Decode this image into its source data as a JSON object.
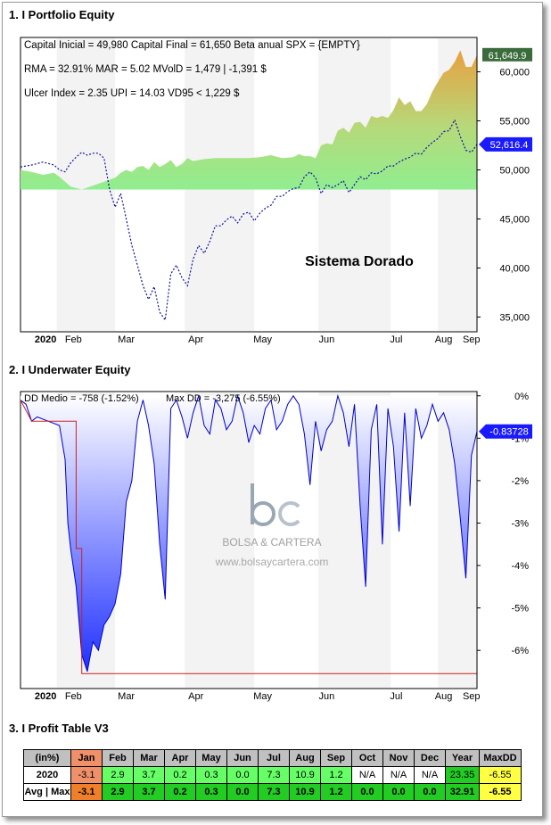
{
  "sections": {
    "equity_title": "1. I Portfolio Equity",
    "underwater_title": "2. I Underwater Equity",
    "profit_title": "3. I Profit Table V3"
  },
  "chart_data": [
    {
      "type": "area",
      "name": "portfolio-equity",
      "annotations": [
        "Capital Inicial = 49,980  Capital Final = 61,650   Beta anual SPX = {EMPTY}",
        "RMA = 32.91%   MAR = 5.02   MVolD = 1,479 | -1,391 $",
        "Ulcer Index = 2.35   UPI = 14.03   VD95 < 1,229 $"
      ],
      "watermark": "Sistema Dorado",
      "x_ticks": [
        "2020",
        "Feb",
        "Mar",
        "Apr",
        "May",
        "Jun",
        "Jul",
        "Aug",
        "Sep"
      ],
      "y_ticks": [
        "35,000",
        "40,000",
        "45,000",
        "50,000",
        "55,000",
        "60,000"
      ],
      "ylim": [
        33500,
        63500
      ],
      "baseline": 48000,
      "last_equity_label": "61,649.9",
      "last_benchmark_label": "52,616.4",
      "colors": {
        "equity_low": "#90ee90",
        "equity_high": "#e8a040",
        "benchmark": "#1010a0",
        "equity_label": "#3a6b3a",
        "benchmark_label": "#1a1aff"
      },
      "equity": [
        [
          0,
          50000
        ],
        [
          4,
          49800
        ],
        [
          8,
          49500
        ],
        [
          12,
          49700
        ],
        [
          14,
          49300
        ],
        [
          18,
          48300
        ],
        [
          22,
          48000
        ],
        [
          26,
          48400
        ],
        [
          30,
          48800
        ],
        [
          34,
          49200
        ],
        [
          36,
          49700
        ],
        [
          38,
          50000
        ],
        [
          40,
          49800
        ],
        [
          42,
          50300
        ],
        [
          44,
          50400
        ],
        [
          46,
          50000
        ],
        [
          48,
          50800
        ],
        [
          50,
          50300
        ],
        [
          52,
          50600
        ],
        [
          54,
          51000
        ],
        [
          56,
          50300
        ],
        [
          58,
          50600
        ],
        [
          60,
          51200
        ],
        [
          62,
          50900
        ],
        [
          66,
          51100
        ],
        [
          70,
          51200
        ],
        [
          74,
          51200
        ],
        [
          78,
          51200
        ],
        [
          82,
          51200
        ],
        [
          86,
          51300
        ],
        [
          90,
          51500
        ],
        [
          94,
          51200
        ],
        [
          98,
          51300
        ],
        [
          100,
          51600
        ],
        [
          102,
          51400
        ],
        [
          104,
          51400
        ],
        [
          106,
          51200
        ],
        [
          108,
          52500
        ],
        [
          110,
          52700
        ],
        [
          112,
          52600
        ],
        [
          114,
          54000
        ],
        [
          116,
          54300
        ],
        [
          118,
          53800
        ],
        [
          120,
          54800
        ],
        [
          122,
          54900
        ],
        [
          124,
          54300
        ],
        [
          126,
          55500
        ],
        [
          128,
          55300
        ],
        [
          130,
          55500
        ],
        [
          132,
          55300
        ],
        [
          134,
          56100
        ],
        [
          136,
          57400
        ],
        [
          138,
          56600
        ],
        [
          140,
          57000
        ],
        [
          142,
          56000
        ],
        [
          144,
          56000
        ],
        [
          146,
          56700
        ],
        [
          148,
          58000
        ],
        [
          150,
          59000
        ],
        [
          152,
          59900
        ],
        [
          154,
          60200
        ],
        [
          156,
          61000
        ],
        [
          158,
          62200
        ],
        [
          160,
          60500
        ],
        [
          162,
          60500
        ],
        [
          164,
          61700
        ]
      ],
      "benchmark": [
        [
          0,
          50300
        ],
        [
          4,
          50500
        ],
        [
          8,
          50800
        ],
        [
          12,
          50500
        ],
        [
          14,
          50000
        ],
        [
          16,
          49800
        ],
        [
          18,
          50700
        ],
        [
          20,
          51300
        ],
        [
          22,
          51800
        ],
        [
          24,
          51500
        ],
        [
          26,
          51700
        ],
        [
          28,
          51700
        ],
        [
          30,
          51200
        ],
        [
          32,
          48000
        ],
        [
          34,
          46200
        ],
        [
          36,
          47600
        ],
        [
          38,
          45000
        ],
        [
          40,
          42300
        ],
        [
          42,
          40300
        ],
        [
          44,
          38200
        ],
        [
          46,
          36800
        ],
        [
          48,
          38100
        ],
        [
          50,
          35500
        ],
        [
          52,
          34700
        ],
        [
          54,
          39400
        ],
        [
          56,
          40300
        ],
        [
          58,
          39000
        ],
        [
          60,
          38200
        ],
        [
          62,
          40900
        ],
        [
          64,
          42300
        ],
        [
          66,
          41500
        ],
        [
          68,
          42700
        ],
        [
          70,
          44300
        ],
        [
          72,
          44300
        ],
        [
          74,
          44900
        ],
        [
          76,
          45300
        ],
        [
          78,
          44600
        ],
        [
          80,
          45500
        ],
        [
          82,
          45700
        ],
        [
          84,
          44800
        ],
        [
          86,
          45600
        ],
        [
          88,
          46100
        ],
        [
          90,
          46400
        ],
        [
          92,
          47300
        ],
        [
          94,
          47300
        ],
        [
          96,
          47800
        ],
        [
          98,
          48100
        ],
        [
          100,
          48200
        ],
        [
          102,
          49300
        ],
        [
          104,
          49800
        ],
        [
          106,
          49200
        ],
        [
          108,
          47600
        ],
        [
          110,
          48500
        ],
        [
          112,
          48200
        ],
        [
          114,
          48500
        ],
        [
          116,
          48900
        ],
        [
          118,
          47700
        ],
        [
          120,
          48500
        ],
        [
          122,
          49300
        ],
        [
          124,
          49000
        ],
        [
          126,
          49700
        ],
        [
          128,
          49600
        ],
        [
          130,
          49900
        ],
        [
          132,
          50400
        ],
        [
          134,
          50400
        ],
        [
          136,
          50800
        ],
        [
          138,
          51100
        ],
        [
          140,
          51300
        ],
        [
          142,
          51700
        ],
        [
          144,
          51600
        ],
        [
          146,
          52300
        ],
        [
          148,
          52800
        ],
        [
          150,
          53200
        ],
        [
          152,
          53900
        ],
        [
          154,
          54000
        ],
        [
          156,
          55100
        ],
        [
          158,
          53400
        ],
        [
          160,
          52000
        ],
        [
          162,
          51800
        ],
        [
          164,
          52600
        ]
      ]
    },
    {
      "type": "area",
      "name": "underwater-equity",
      "annotations": [
        "DD Medio = -758 (-1.52%)",
        "Max DD = -3,275 (-6.55%)"
      ],
      "x_ticks": [
        "2020",
        "Feb",
        "Mar",
        "Apr",
        "May",
        "Jun",
        "Jul",
        "Aug",
        "Sep"
      ],
      "y_ticks": [
        "0%",
        "-1%",
        "-2%",
        "-3%",
        "-4%",
        "-5%",
        "-6%"
      ],
      "ylim": [
        -6.9,
        0.1
      ],
      "last_dd_label": "-0.83728",
      "logo_text": [
        "BOLSA & CARTERA",
        "www.bolsaycartera.com"
      ],
      "colors": {
        "dd_top": "#ffffff",
        "dd_bottom": "#2030ff",
        "dd_line": "#0000cc",
        "maxdd_line": "#cc2020",
        "dd_label": "#1a1aff"
      },
      "drawdown": [
        [
          0,
          -0.1
        ],
        [
          2,
          -0.2
        ],
        [
          4,
          -0.6
        ],
        [
          6,
          -0.5
        ],
        [
          10,
          -0.6
        ],
        [
          14,
          -0.7
        ],
        [
          16,
          -1.5
        ],
        [
          17,
          -3.0
        ],
        [
          18,
          -3.6
        ],
        [
          20,
          -4.5
        ],
        [
          22,
          -6.1
        ],
        [
          24,
          -6.5
        ],
        [
          26,
          -5.8
        ],
        [
          28,
          -6.0
        ],
        [
          30,
          -5.4
        ],
        [
          32,
          -5.2
        ],
        [
          34,
          -4.9
        ],
        [
          36,
          -4.2
        ],
        [
          38,
          -2.5
        ],
        [
          40,
          -2.0
        ],
        [
          42,
          -0.6
        ],
        [
          44,
          -0.1
        ],
        [
          46,
          -0.7
        ],
        [
          48,
          -1.6
        ],
        [
          50,
          -3.5
        ],
        [
          52,
          -4.8
        ],
        [
          54,
          -0.3
        ],
        [
          56,
          -0.1
        ],
        [
          58,
          -0.5
        ],
        [
          60,
          -1.0
        ],
        [
          62,
          -0.4
        ],
        [
          64,
          0.0
        ],
        [
          66,
          -0.7
        ],
        [
          68,
          -0.9
        ],
        [
          70,
          -0.1
        ],
        [
          72,
          -0.3
        ],
        [
          74,
          -0.8
        ],
        [
          76,
          -0.6
        ],
        [
          78,
          0.0
        ],
        [
          80,
          -0.4
        ],
        [
          82,
          -1.1
        ],
        [
          84,
          -0.7
        ],
        [
          86,
          -0.9
        ],
        [
          88,
          -0.3
        ],
        [
          90,
          -0.1
        ],
        [
          92,
          -0.8
        ],
        [
          94,
          -0.6
        ],
        [
          96,
          -0.2
        ],
        [
          98,
          0.0
        ],
        [
          100,
          -0.2
        ],
        [
          102,
          -0.9
        ],
        [
          104,
          -2.1
        ],
        [
          106,
          -0.6
        ],
        [
          108,
          -1.3
        ],
        [
          110,
          -0.8
        ],
        [
          112,
          -0.6
        ],
        [
          114,
          0.0
        ],
        [
          116,
          -0.4
        ],
        [
          118,
          -1.2
        ],
        [
          120,
          -0.2
        ],
        [
          122,
          -2.6
        ],
        [
          124,
          -4.5
        ],
        [
          126,
          -0.8
        ],
        [
          128,
          -0.2
        ],
        [
          130,
          -3.5
        ],
        [
          132,
          -0.3
        ],
        [
          134,
          -1.2
        ],
        [
          136,
          -3.2
        ],
        [
          138,
          -0.4
        ],
        [
          140,
          -2.6
        ],
        [
          142,
          -0.3
        ],
        [
          144,
          -1.0
        ],
        [
          146,
          -0.7
        ],
        [
          148,
          -0.2
        ],
        [
          150,
          -0.6
        ],
        [
          152,
          -0.4
        ],
        [
          154,
          -0.8
        ],
        [
          156,
          -1.6
        ],
        [
          158,
          -2.9
        ],
        [
          160,
          -4.3
        ],
        [
          162,
          -1.4
        ],
        [
          164,
          -0.84
        ]
      ],
      "max_dd": -6.55
    }
  ],
  "profit_table": {
    "headers": [
      "(in%)",
      "Jan",
      "Feb",
      "Mar",
      "Apr",
      "May",
      "Jun",
      "Jul",
      "Aug",
      "Sep",
      "Oct",
      "Nov",
      "Dec",
      "Year",
      "MaxDD"
    ],
    "rows": [
      {
        "label": "2020",
        "cells": [
          "-3.1",
          "2.9",
          "3.7",
          "0.2",
          "0.3",
          "0.0",
          "7.3",
          "10.9",
          "1.2",
          "N/A",
          "N/A",
          "N/A",
          "23.35",
          "-6.55"
        ],
        "colors": [
          "#f0906a",
          "#66ff66",
          "#66ff66",
          "#66ff66",
          "#66ff66",
          "#66ff66",
          "#66ff66",
          "#66ff66",
          "#66ff66",
          "#ffffff",
          "#ffffff",
          "#ffffff",
          "#22cc22",
          "#ffff44"
        ]
      },
      {
        "label": "Avg | Max",
        "cells": [
          "-3.1",
          "2.9",
          "3.7",
          "0.2",
          "0.3",
          "0.0",
          "7.3",
          "10.9",
          "1.2",
          "0.0",
          "0.0",
          "0.0",
          "32.91",
          "-6.55"
        ],
        "colors": [
          "#f07f2a",
          "#22cc22",
          "#22cc22",
          "#22cc22",
          "#22cc22",
          "#22cc22",
          "#22cc22",
          "#22cc22",
          "#22cc22",
          "#22cc22",
          "#22cc22",
          "#22cc22",
          "#22cc22",
          "#ffff44"
        ]
      }
    ],
    "header_jan_color": "#f0906a"
  }
}
